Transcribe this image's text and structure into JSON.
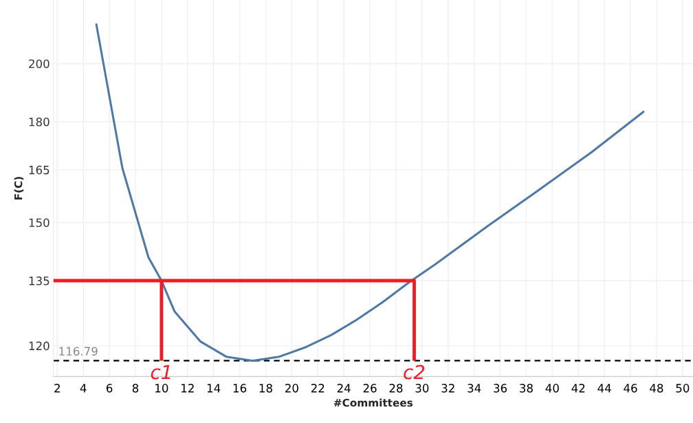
{
  "chart_data": {
    "type": "line",
    "xlabel": "#Committees",
    "ylabel": "F(C)",
    "log": "y",
    "grid": true,
    "xlim": [
      1.7,
      50.8
    ],
    "xticks": [
      2,
      4,
      6,
      8,
      10,
      12,
      14,
      16,
      18,
      20,
      22,
      24,
      26,
      28,
      30,
      32,
      34,
      36,
      38,
      40,
      42,
      44,
      46,
      48,
      50
    ],
    "ylim": [
      113.5,
      224.4
    ],
    "yticks": [
      120,
      135,
      150,
      165,
      180,
      200
    ],
    "series": [
      {
        "color": "#4e79a7",
        "x": [
          5,
          7,
          9,
          10,
          11,
          13,
          15,
          17,
          19,
          21,
          23,
          25,
          27,
          29,
          31,
          35,
          39,
          43,
          47
        ],
        "values": [
          214.7,
          165.5,
          140.8,
          135,
          127.7,
          120.9,
          117.6,
          116.79,
          117.6,
          119.6,
          122.3,
          125.8,
          129.9,
          134.6,
          139.0,
          148.9,
          159.2,
          170.3,
          183.3
        ]
      },
      {
        "color": "#ee1c25",
        "x": [
          1.7,
          29.4,
          29.4
        ],
        "values": [
          135,
          135,
          116.79
        ]
      },
      {
        "color": "#ee1c25",
        "x": [
          10,
          10
        ],
        "values": [
          135,
          116.79
        ]
      }
    ],
    "ref_lines": [
      {
        "axis": "y",
        "value": 116.79,
        "label": "116.79",
        "color": "#000000",
        "line_style": "dashed"
      }
    ],
    "annotations": [
      {
        "text": "c1",
        "x": 10,
        "y": 116.79
      },
      {
        "text": "c2",
        "x": 29.4,
        "y": 116.79
      }
    ]
  }
}
